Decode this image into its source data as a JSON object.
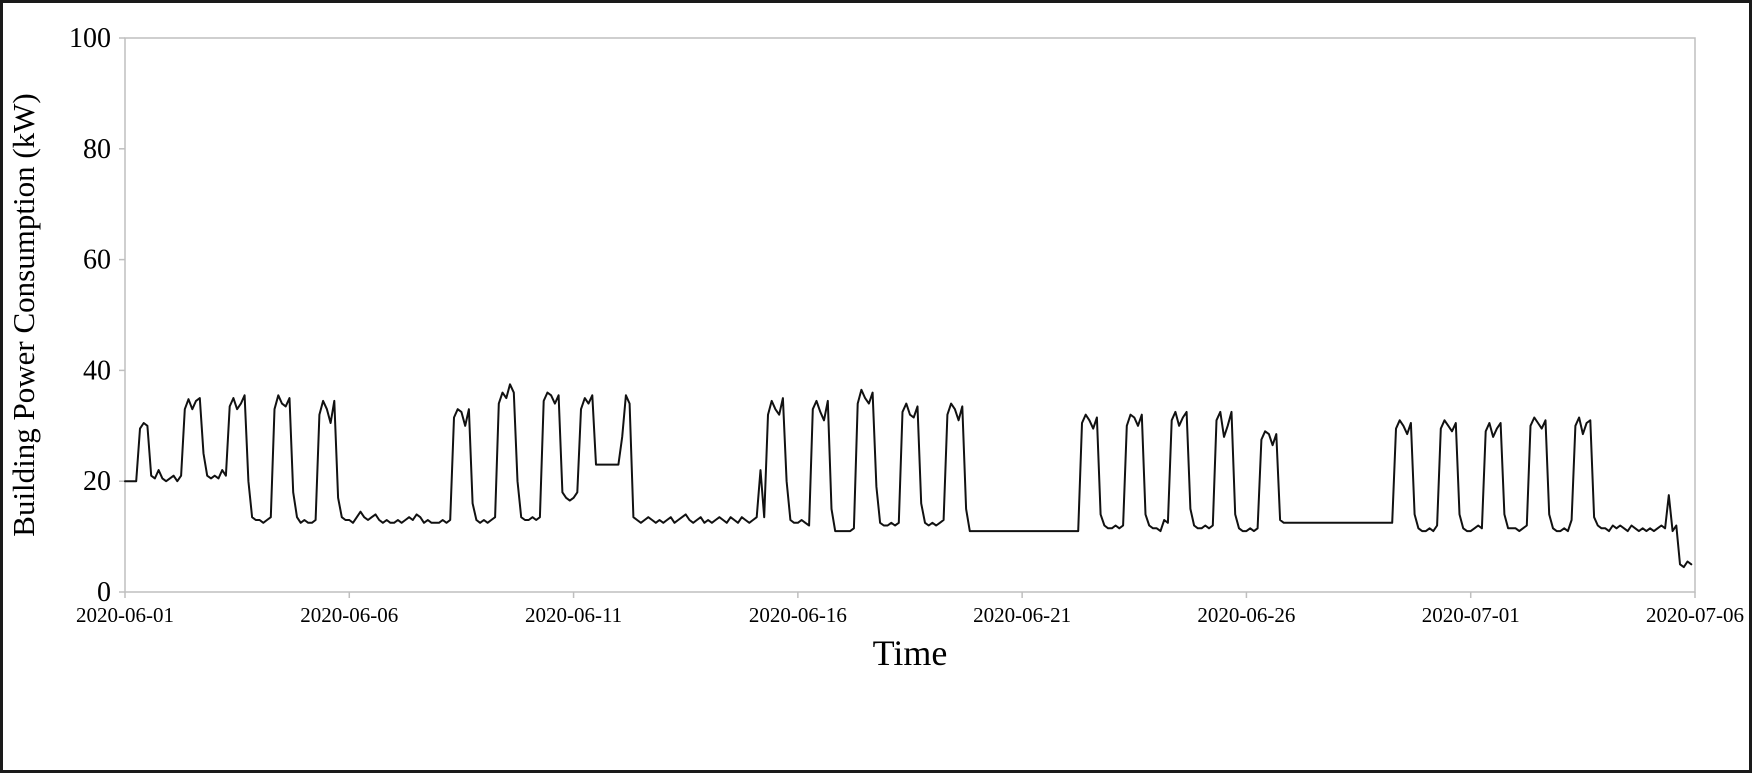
{
  "page": {
    "background_color": "#ffffff",
    "outer_border_color": "#1a1a1a"
  },
  "chart_data": {
    "type": "line",
    "title": "",
    "xlabel": "Time",
    "ylabel": "Building Power Consumption (kW)",
    "ylim": [
      0,
      100
    ],
    "yticks": [
      0,
      20,
      40,
      60,
      80,
      100
    ],
    "xtick_labels": [
      "2020-06-01",
      "2020-06-06",
      "2020-06-11",
      "2020-06-16",
      "2020-06-21",
      "2020-06-26",
      "2020-07-01",
      "2020-07-06"
    ],
    "xtick_day_offsets": [
      0,
      5,
      10,
      15,
      20,
      25,
      30,
      35
    ],
    "x_span_days": 35,
    "grid": "off",
    "legend": "none",
    "line_color": "#111111",
    "plot_border_color": "#bfbfbf",
    "sample_interval_hours": 2,
    "days": [
      {
        "date": "2020-06-01",
        "values": [
          20,
          20,
          20,
          20,
          29.5,
          30.5,
          30,
          21,
          20.5,
          22,
          20.5,
          20
        ]
      },
      {
        "date": "2020-06-02",
        "values": [
          20.5,
          21,
          20,
          21,
          33,
          34.8,
          33,
          34.5,
          35,
          25,
          21,
          20.5
        ]
      },
      {
        "date": "2020-06-03",
        "values": [
          21,
          20.5,
          22,
          21,
          33.5,
          35,
          33,
          34,
          35.5,
          20,
          13.5,
          13
        ]
      },
      {
        "date": "2020-06-04",
        "values": [
          13,
          12.5,
          13,
          13.5,
          33,
          35.5,
          34,
          33.5,
          35,
          18,
          13.5,
          12.5
        ]
      },
      {
        "date": "2020-06-05",
        "values": [
          13,
          12.5,
          12.5,
          13,
          32,
          34.5,
          33,
          30.5,
          34.5,
          17,
          13.5,
          13
        ]
      },
      {
        "date": "2020-06-06",
        "values": [
          13,
          12.5,
          13.5,
          14.5,
          13.5,
          13,
          13.5,
          14,
          13,
          12.5,
          13,
          12.5
        ]
      },
      {
        "date": "2020-06-07",
        "values": [
          12.5,
          13,
          12.5,
          13,
          13.5,
          13,
          14,
          13.5,
          12.5,
          13,
          12.5,
          12.5
        ]
      },
      {
        "date": "2020-06-08",
        "values": [
          12.5,
          13,
          12.5,
          13,
          31.5,
          33,
          32.5,
          30,
          33,
          16,
          13,
          12.5
        ]
      },
      {
        "date": "2020-06-09",
        "values": [
          13,
          12.5,
          13,
          13.5,
          34,
          36,
          35,
          37.5,
          36,
          20,
          13.5,
          13
        ]
      },
      {
        "date": "2020-06-10",
        "values": [
          13,
          13.5,
          13,
          13.5,
          34.5,
          36,
          35.5,
          34,
          35.5,
          18,
          17,
          16.5
        ]
      },
      {
        "date": "2020-06-11",
        "values": [
          17,
          18,
          33,
          35,
          34,
          35.5,
          23,
          23,
          23,
          23,
          23,
          23
        ]
      },
      {
        "date": "2020-06-12",
        "values": [
          23,
          28,
          35.5,
          34,
          13.5,
          13,
          12.5,
          13,
          13.5,
          13,
          12.5,
          13
        ]
      },
      {
        "date": "2020-06-13",
        "values": [
          12.5,
          13,
          13.5,
          12.5,
          13,
          13.5,
          14,
          13,
          12.5,
          13,
          13.5,
          12.5
        ]
      },
      {
        "date": "2020-06-14",
        "values": [
          13,
          12.5,
          13,
          13.5,
          13,
          12.5,
          13.5,
          13,
          12.5,
          13.5,
          13,
          12.5
        ]
      },
      {
        "date": "2020-06-15",
        "values": [
          13,
          13.5,
          22,
          13.5,
          32,
          34.5,
          33,
          32,
          35,
          20,
          13,
          12.5
        ]
      },
      {
        "date": "2020-06-16",
        "values": [
          12.5,
          13,
          12.5,
          12,
          33,
          34.5,
          32.5,
          31,
          34.5,
          15,
          11,
          11
        ]
      },
      {
        "date": "2020-06-17",
        "values": [
          11,
          11,
          11,
          11.5,
          34,
          36.5,
          35,
          34,
          36,
          19,
          12.5,
          12
        ]
      },
      {
        "date": "2020-06-18",
        "values": [
          12,
          12.5,
          12,
          12.5,
          32.5,
          34,
          32,
          31.5,
          33.5,
          16,
          12.5,
          12
        ]
      },
      {
        "date": "2020-06-19",
        "values": [
          12.5,
          12,
          12.5,
          13,
          32,
          34,
          33,
          31,
          33.5,
          15,
          11,
          11
        ]
      },
      {
        "date": "2020-06-20",
        "values": [
          11,
          11,
          11,
          11,
          11,
          11,
          11,
          11,
          11,
          11,
          11,
          11
        ]
      },
      {
        "date": "2020-06-21",
        "values": [
          11,
          11,
          11,
          11,
          11,
          11,
          11,
          11,
          11,
          11,
          11,
          11
        ]
      },
      {
        "date": "2020-06-22",
        "values": [
          11,
          11,
          11,
          11,
          30.5,
          32,
          31,
          29.5,
          31.5,
          14,
          12,
          11.5
        ]
      },
      {
        "date": "2020-06-23",
        "values": [
          11.5,
          12,
          11.5,
          12,
          30,
          32,
          31.5,
          30,
          32,
          14,
          12,
          11.5
        ]
      },
      {
        "date": "2020-06-24",
        "values": [
          11.5,
          11,
          13,
          12.5,
          31,
          32.5,
          30,
          31.5,
          32.5,
          15,
          12,
          11.5
        ]
      },
      {
        "date": "2020-06-25",
        "values": [
          11.5,
          12,
          11.5,
          12,
          31,
          32.5,
          28,
          30,
          32.5,
          14,
          11.5,
          11
        ]
      },
      {
        "date": "2020-06-26",
        "values": [
          11,
          11.5,
          11,
          11.5,
          27.5,
          29,
          28.5,
          26.5,
          28.5,
          13,
          12.5,
          12.5
        ]
      },
      {
        "date": "2020-06-27",
        "values": [
          12.5,
          12.5,
          12.5,
          12.5,
          12.5,
          12.5,
          12.5,
          12.5,
          12.5,
          12.5,
          12.5,
          12.5
        ]
      },
      {
        "date": "2020-06-28",
        "values": [
          12.5,
          12.5,
          12.5,
          12.5,
          12.5,
          12.5,
          12.5,
          12.5,
          12.5,
          12.5,
          12.5,
          12.5
        ]
      },
      {
        "date": "2020-06-29",
        "values": [
          12.5,
          12.5,
          12.5,
          12.5,
          29.5,
          31,
          30,
          28.5,
          30.5,
          14,
          11.5,
          11
        ]
      },
      {
        "date": "2020-06-30",
        "values": [
          11,
          11.5,
          11,
          12,
          29.5,
          31,
          30,
          29,
          30.5,
          14,
          11.5,
          11
        ]
      },
      {
        "date": "2020-07-01",
        "values": [
          11,
          11.5,
          12,
          11.5,
          29,
          30.5,
          28,
          29.5,
          30.5,
          14,
          11.5,
          11.5
        ]
      },
      {
        "date": "2020-07-02",
        "values": [
          11.5,
          11,
          11.5,
          12,
          30,
          31.5,
          30.5,
          29.5,
          31,
          14,
          11.5,
          11
        ]
      },
      {
        "date": "2020-07-03",
        "values": [
          11,
          11.5,
          11,
          13,
          30,
          31.5,
          28.5,
          30.5,
          31,
          13.5,
          12,
          11.5
        ]
      },
      {
        "date": "2020-07-04",
        "values": [
          11.5,
          11,
          12,
          11.5,
          12,
          11.5,
          11,
          12,
          11.5,
          11,
          11.5,
          11
        ]
      },
      {
        "date": "2020-07-05",
        "values": [
          11.5,
          11,
          11.5,
          12,
          11.5,
          17.5,
          11,
          12,
          5,
          4.5,
          5.5,
          5
        ]
      }
    ]
  }
}
